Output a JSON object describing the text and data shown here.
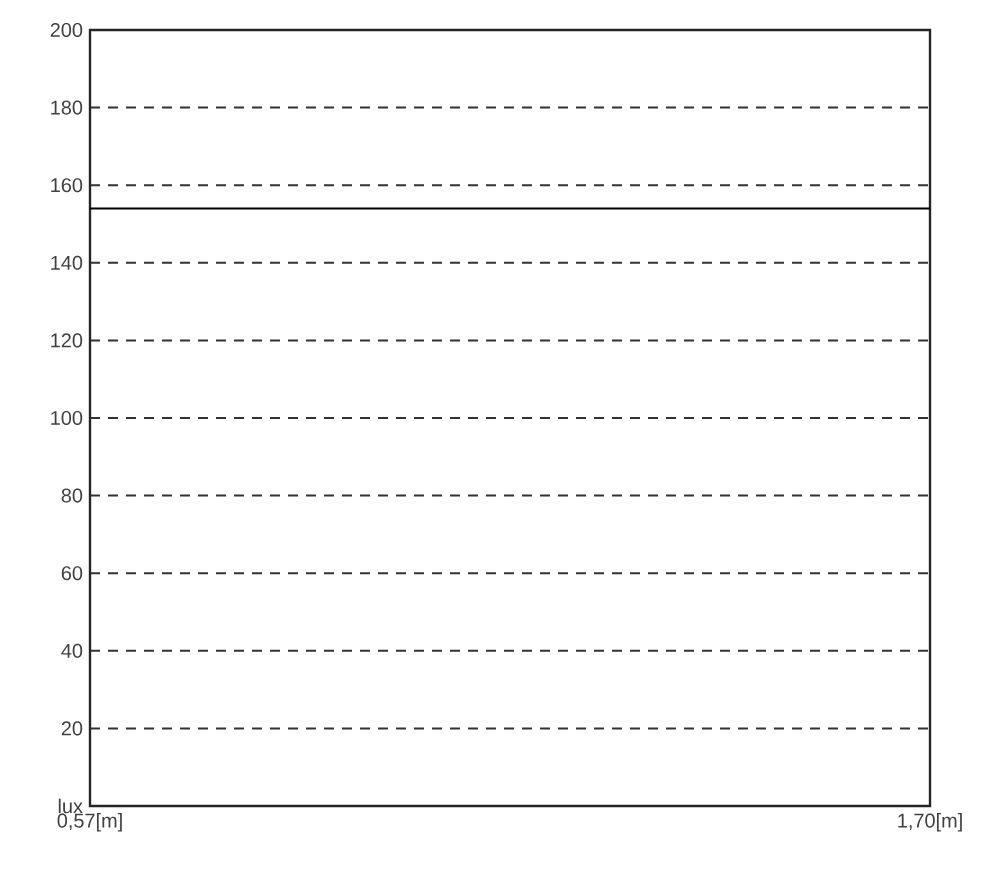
{
  "chart_data": {
    "type": "line",
    "x": [
      0.57,
      1.7
    ],
    "series": [
      {
        "color": "#000000",
        "values": [
          154,
          154
        ]
      }
    ],
    "xlim": [
      0.57,
      1.7
    ],
    "xticks": [
      {
        "value": 0.57,
        "label": "0,57[m]"
      },
      {
        "value": 1.7,
        "label": "1,70[m]"
      }
    ],
    "ylim": [
      0,
      200
    ],
    "yticks": [
      {
        "value": 0,
        "label": "lux"
      },
      20,
      40,
      60,
      80,
      100,
      120,
      140,
      160,
      180,
      200
    ],
    "grid": "y",
    "marker": "none",
    "line_style": "solid"
  }
}
